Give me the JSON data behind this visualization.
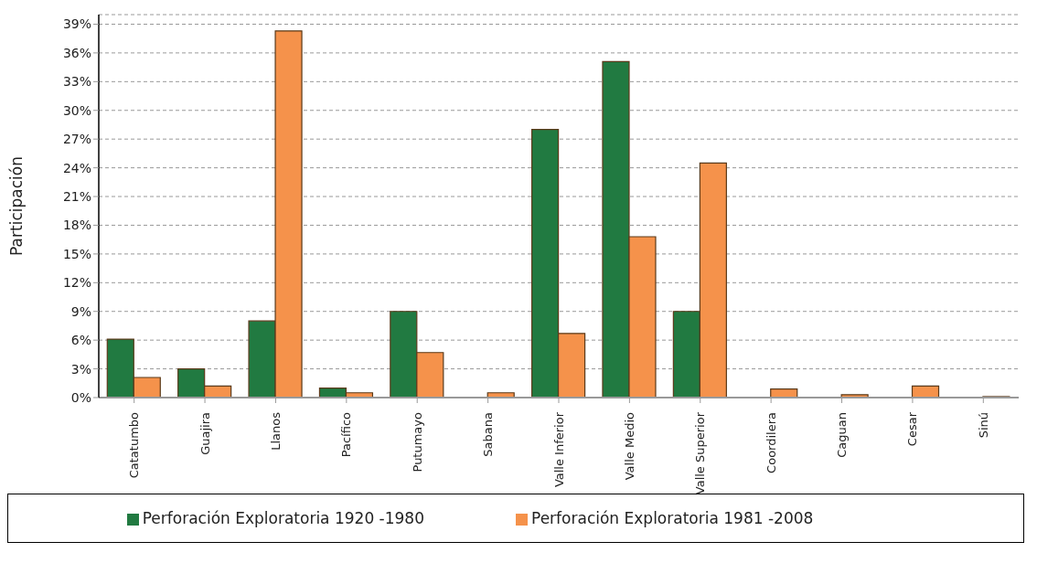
{
  "chart_data": {
    "type": "bar",
    "ylabel": "Participación",
    "categories": [
      "Catatumbo",
      "Guajira",
      "Llanos",
      "Pacífico",
      "Putumayo",
      "Sabana",
      "Valle Inferior",
      "Valle Medio",
      "Valle Superior",
      "Coordilera",
      "Caguan",
      "Cesar",
      "Sinú"
    ],
    "series": [
      {
        "name": "Perforación Exploratoria 1920 -1980",
        "color": "#217a41",
        "values": [
          6.1,
          3.0,
          8.0,
          1.0,
          9.0,
          0,
          28.0,
          35.1,
          9.0,
          0,
          0,
          0,
          0
        ]
      },
      {
        "name": "Perforación Exploratoria 1981 -2008",
        "color": "#f5924b",
        "values": [
          2.1,
          1.2,
          38.3,
          0.5,
          4.7,
          0.5,
          6.7,
          16.8,
          24.5,
          0.9,
          0.3,
          1.2,
          0.1
        ]
      }
    ],
    "ylim": [
      0,
      40
    ],
    "yticks": [
      {
        "value": 0,
        "label": "0%"
      },
      {
        "value": 3,
        "label": "3%"
      },
      {
        "value": 6,
        "label": "6%"
      },
      {
        "value": 9,
        "label": "9%"
      },
      {
        "value": 12,
        "label": "12%"
      },
      {
        "value": 15,
        "label": "15%"
      },
      {
        "value": 18,
        "label": "18%"
      },
      {
        "value": 21,
        "label": "21%"
      },
      {
        "value": 24,
        "label": "24%"
      },
      {
        "value": 27,
        "label": "27%"
      },
      {
        "value": 30,
        "label": "30%"
      },
      {
        "value": 33,
        "label": "33%"
      },
      {
        "value": 36,
        "label": "36%"
      },
      {
        "value": 39,
        "label": "39%"
      }
    ],
    "grid": "y",
    "legend": "bottom"
  }
}
